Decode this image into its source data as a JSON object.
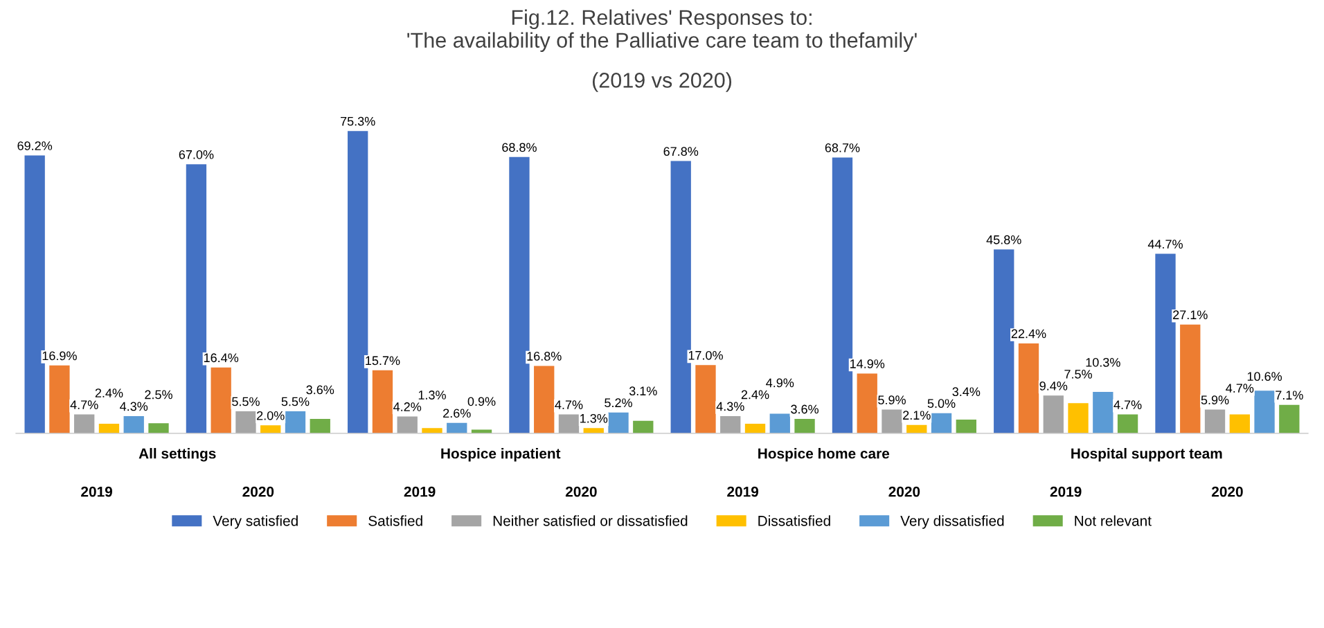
{
  "chart_data": {
    "type": "bar",
    "title": "Fig.12. Relatives' Responses to:\n'The availability of the Palliative care team to thefamily'",
    "subtitle": "(2019 vs 2020)",
    "categories": [
      "2019",
      "2020",
      "2019",
      "2020",
      "2019",
      "2020",
      "2019",
      "2020"
    ],
    "annotations": [
      "All settings",
      "Hospice inpatient",
      "Hospice home care",
      "Hospital support team"
    ],
    "series": [
      {
        "name": "Very satisfied",
        "color": "#4472c4",
        "values": [
          69.2,
          67.0,
          75.3,
          68.8,
          67.8,
          68.7,
          45.8,
          44.7
        ],
        "value_labels": [
          "69.2%",
          "67.0%",
          "75.3%",
          "68.8%",
          "67.8%",
          "68.7%",
          "45.8%",
          "44.7%"
        ]
      },
      {
        "name": "Satisfied",
        "color": "#ed7d31",
        "values": [
          16.9,
          16.4,
          15.7,
          16.8,
          17.0,
          14.9,
          22.4,
          27.1
        ],
        "value_labels": [
          "16.9%",
          "16.4%",
          "15.7%",
          "16.8%",
          "17.0%",
          "14.9%",
          "22.4%",
          "27.1%"
        ]
      },
      {
        "name": "Neither satisfied or dissatisfied",
        "color": "#a5a5a5",
        "values": [
          4.7,
          5.5,
          4.2,
          4.7,
          4.3,
          5.9,
          9.4,
          5.9
        ],
        "value_labels": [
          "4.7%",
          "5.5%",
          "4.2%",
          "4.7%",
          "4.3%",
          "5.9%",
          "9.4%",
          "5.9%"
        ]
      },
      {
        "name": "Dissatisfied",
        "color": "#ffc000",
        "values": [
          2.4,
          2.0,
          1.3,
          1.3,
          2.4,
          2.1,
          7.5,
          4.7
        ],
        "value_labels": [
          "2.4%",
          "2.0%",
          "1.3%",
          "1.3%",
          "2.4%",
          "2.1%",
          "7.5%",
          "4.7%"
        ]
      },
      {
        "name": "Very dissatisfied",
        "color": "#5b9bd5",
        "values": [
          4.3,
          5.5,
          2.6,
          5.2,
          4.9,
          5.0,
          10.3,
          10.6
        ],
        "value_labels": [
          "4.3%",
          "5.5%",
          "2.6%",
          "5.2%",
          "4.9%",
          "5.0%",
          "10.3%",
          "10.6%"
        ]
      },
      {
        "name": "Not relevant",
        "color": "#70ad47",
        "values": [
          2.5,
          3.6,
          0.9,
          3.1,
          3.6,
          3.4,
          4.7,
          7.1
        ],
        "value_labels": [
          "2.5%",
          "3.6%",
          "0.9%",
          "3.1%",
          "3.6%",
          "3.4%",
          "4.7%",
          "7.1%"
        ]
      }
    ],
    "legend": "bottom",
    "grid": false
  }
}
